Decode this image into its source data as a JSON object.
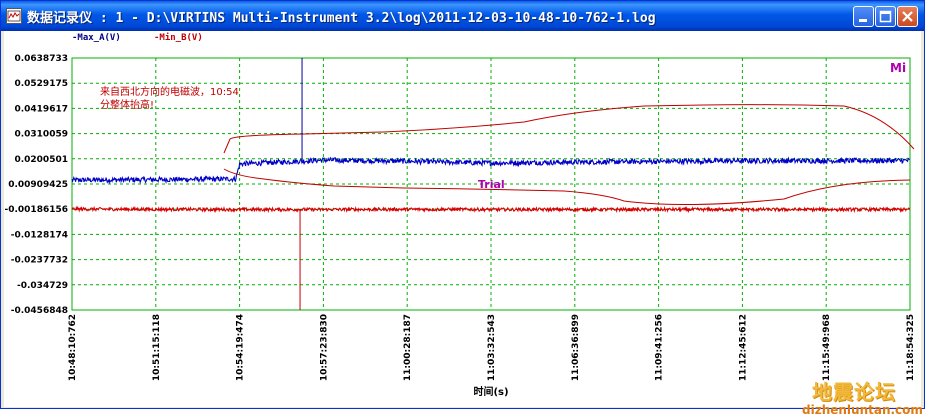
{
  "window": {
    "title": "数据记录仪 : 1 - D:\\VIRTINS Multi-Instrument 3.2\\log\\2011-12-03-10-48-10-762-1.log",
    "controls": [
      "minimize",
      "maximize",
      "close"
    ]
  },
  "legend": {
    "series_a": "-Max_A(V)",
    "series_b": "-Min_B(V)"
  },
  "annotation": {
    "line1": "来自西北方向的电磁波，10:54",
    "line2": "分整体抬高!"
  },
  "overlay": {
    "corner_label": "Mi",
    "trial_label": "Trial"
  },
  "watermark": {
    "text": "地震论坛",
    "url": "dizhenluntan.com"
  },
  "colors": {
    "series_a": "#0000c8",
    "series_b": "#d80000",
    "grid": "#00b000",
    "annotation": "#c00000",
    "trial": "#b000b0"
  },
  "chart_data": {
    "type": "line",
    "xlabel": "时间(s)",
    "ylabel": "",
    "x_ticks": [
      "10:48:10:762",
      "10:51:15:118",
      "10:54:19:474",
      "10:57:23:830",
      "11:00:28:187",
      "11:03:32:543",
      "11:06:36:899",
      "11:09:41:256",
      "11:12:45:612",
      "11:15:49:968",
      "11:18:54:325"
    ],
    "y_ticks": [
      "0.0638733",
      "0.0529175",
      "0.0419617",
      "0.0310059",
      "0.0200501",
      "0.00909425",
      "-0.00186156",
      "-0.0128174",
      "-0.0237732",
      "-0.034729",
      "-0.0456848"
    ],
    "ylim": [
      -0.0456848,
      0.0638733
    ],
    "grid": true,
    "series": [
      {
        "name": "Max_A(V)",
        "x": [
          "10:48:10",
          "10:51:15",
          "10:54:10",
          "10:54:19",
          "10:57:23",
          "11:00:28",
          "11:03:32",
          "11:06:36",
          "11:09:41",
          "11:12:45",
          "11:15:49",
          "11:18:54"
        ],
        "values": [
          0.0108,
          0.011,
          0.0113,
          0.0178,
          0.0195,
          0.019,
          0.0182,
          0.0186,
          0.0189,
          0.0192,
          0.0192,
          0.0193
        ]
      },
      {
        "name": "Min_B(V)",
        "x": [
          "10:48:10",
          "10:51:15",
          "10:54:19",
          "10:57:23",
          "11:00:28",
          "11:03:32",
          "11:06:36",
          "11:09:41",
          "11:12:45",
          "11:15:49",
          "11:18:54"
        ],
        "values": [
          -0.0018,
          -0.0019,
          -0.002,
          -0.002,
          -0.0019,
          -0.002,
          -0.002,
          -0.002,
          -0.002,
          -0.002,
          -0.002
        ]
      }
    ],
    "markers": [
      {
        "label": "blue cursor",
        "x": "10:56:34"
      },
      {
        "label": "red cursor",
        "x": "10:56:34"
      }
    ]
  }
}
